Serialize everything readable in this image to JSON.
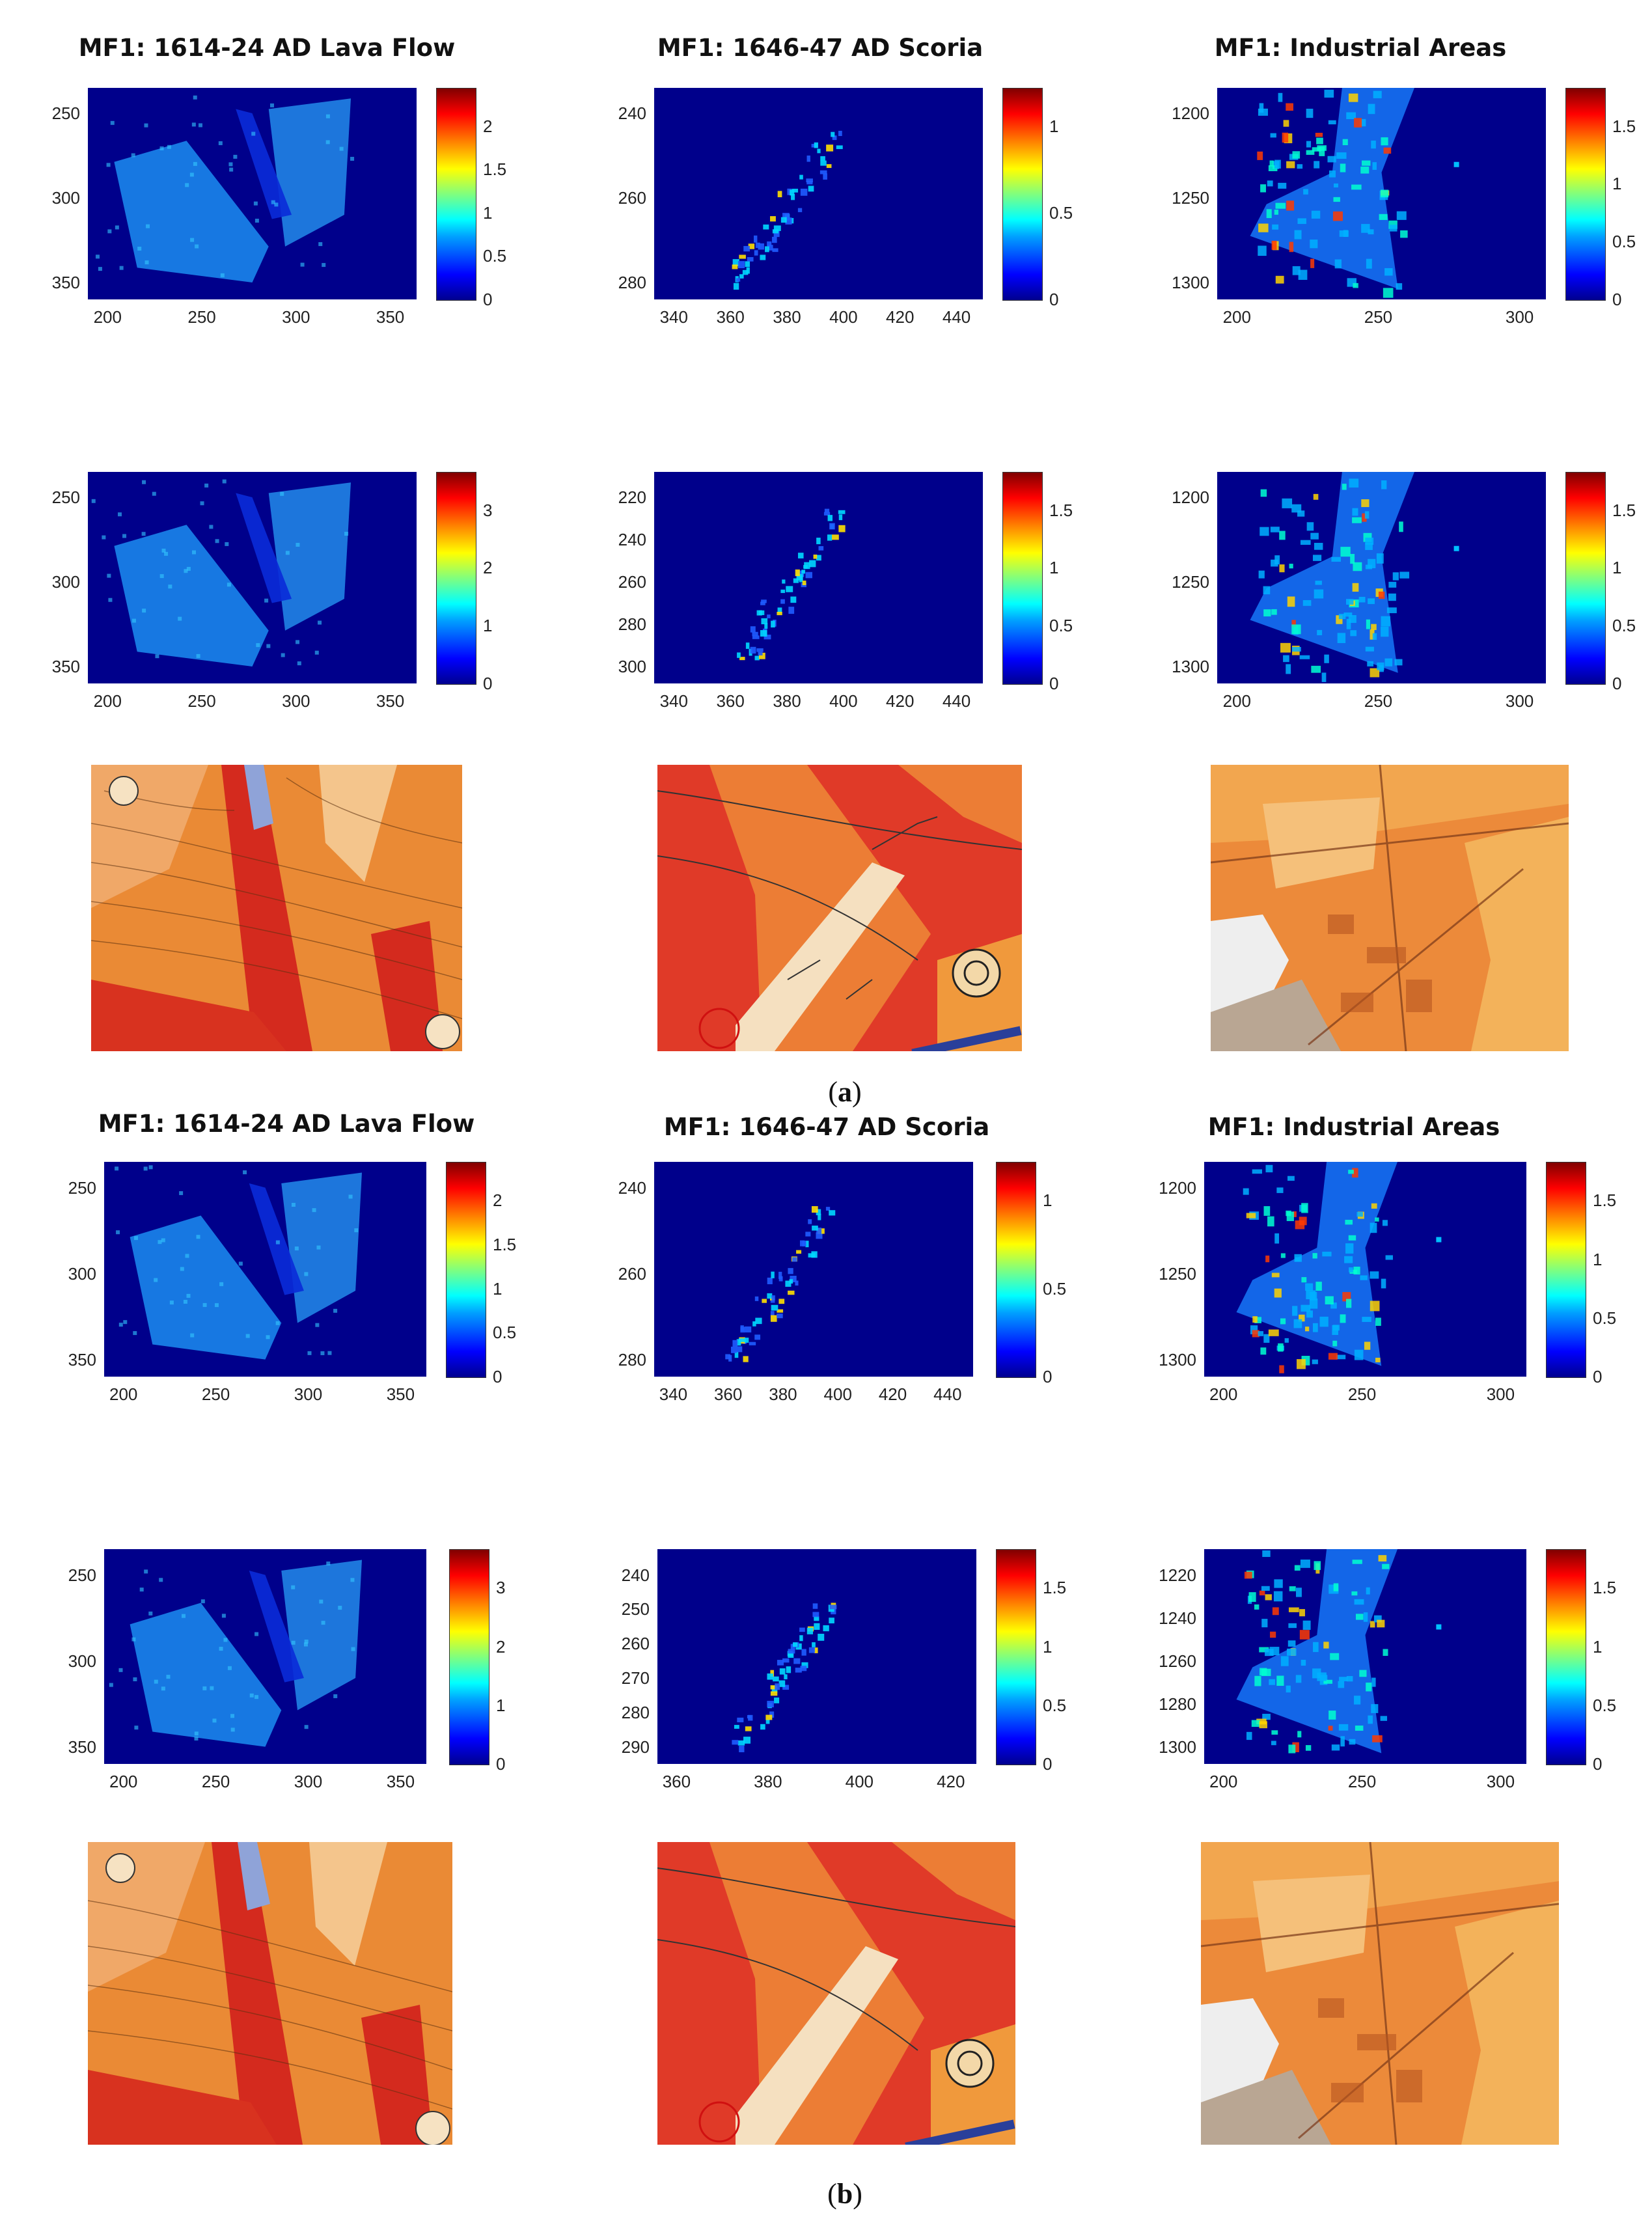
{
  "figure": {
    "captions": [
      "a",
      "b"
    ],
    "panels": [
      {
        "id": "a",
        "titles": [
          "MF1: 1614-24 AD Lava Flow",
          "MF1: 1646-47 AD Scoria",
          "MF1: Industrial Areas"
        ],
        "rows": [
          [
            {
              "xticks": [
                "200",
                "250",
                "300",
                "350"
              ],
              "yticks": [
                "250",
                "300",
                "350"
              ],
              "cticks": [
                "2",
                "1.5",
                "1",
                "0.5",
                "0"
              ]
            },
            {
              "xticks": [
                "340",
                "360",
                "380",
                "400",
                "420",
                "440"
              ],
              "yticks": [
                "240",
                "260",
                "280"
              ],
              "cticks": [
                "1",
                "0.5",
                "0"
              ]
            },
            {
              "xticks": [
                "200",
                "250",
                "300"
              ],
              "yticks": [
                "1200",
                "1250",
                "1300"
              ],
              "cticks": [
                "1.5",
                "1",
                "0.5",
                "0"
              ]
            }
          ],
          [
            {
              "xticks": [
                "200",
                "250",
                "300",
                "350"
              ],
              "yticks": [
                "250",
                "300",
                "350"
              ],
              "cticks": [
                "3",
                "2",
                "1",
                "0"
              ]
            },
            {
              "xticks": [
                "340",
                "360",
                "380",
                "400",
                "420",
                "440"
              ],
              "yticks": [
                "220",
                "240",
                "260",
                "280",
                "300"
              ],
              "cticks": [
                "1.5",
                "1",
                "0.5",
                "0"
              ]
            },
            {
              "xticks": [
                "200",
                "250",
                "300"
              ],
              "yticks": [
                "1200",
                "1250",
                "1300"
              ],
              "cticks": [
                "1.5",
                "1",
                "0.5",
                "0"
              ]
            }
          ]
        ]
      },
      {
        "id": "b",
        "titles": [
          "MF1: 1614-24 AD Lava Flow",
          "MF1: 1646-47 AD Scoria",
          "MF1: Industrial Areas"
        ],
        "rows": [
          [
            {
              "xticks": [
                "200",
                "250",
                "300",
                "350"
              ],
              "yticks": [
                "250",
                "300",
                "350"
              ],
              "cticks": [
                "2",
                "1.5",
                "1",
                "0.5",
                "0"
              ]
            },
            {
              "xticks": [
                "340",
                "360",
                "380",
                "400",
                "420",
                "440"
              ],
              "yticks": [
                "240",
                "260",
                "280"
              ],
              "cticks": [
                "1",
                "0.5",
                "0"
              ]
            },
            {
              "xticks": [
                "200",
                "250",
                "300"
              ],
              "yticks": [
                "1200",
                "1250",
                "1300"
              ],
              "cticks": [
                "1.5",
                "1",
                "0.5",
                "0"
              ]
            }
          ],
          [
            {
              "xticks": [
                "200",
                "250",
                "300",
                "350"
              ],
              "yticks": [
                "250",
                "300",
                "350"
              ],
              "cticks": [
                "3",
                "2",
                "1",
                "0"
              ]
            },
            {
              "xticks": [
                "360",
                "380",
                "400",
                "420"
              ],
              "yticks": [
                "240",
                "250",
                "260",
                "270",
                "280",
                "290"
              ],
              "cticks": [
                "1.5",
                "1",
                "0.5",
                "0"
              ]
            },
            {
              "xticks": [
                "200",
                "250",
                "300"
              ],
              "yticks": [
                "1220",
                "1240",
                "1260",
                "1280",
                "1300"
              ],
              "cticks": [
                "1.5",
                "1",
                "0.5",
                "0"
              ]
            }
          ]
        ]
      }
    ]
  }
}
